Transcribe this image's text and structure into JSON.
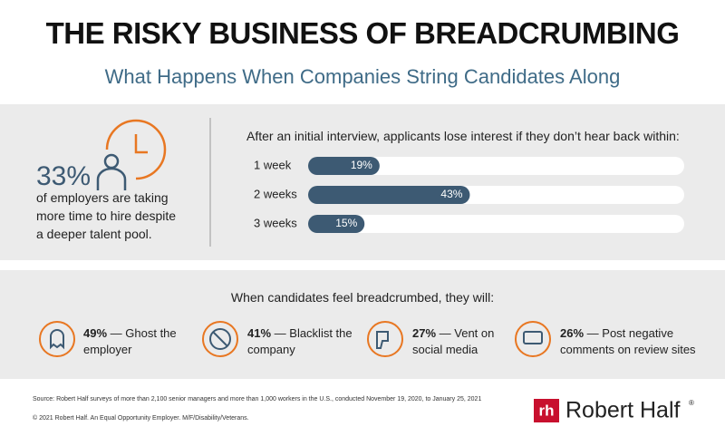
{
  "header": {
    "title": "THE RISKY BUSINESS OF BREADCRUMBING",
    "subtitle": "What Happens When Companies String Candidates Along"
  },
  "stat": {
    "value": 33,
    "value_label": "33%",
    "lines": [
      "of employers are taking",
      "more time to hire despite",
      "a deeper talent pool."
    ]
  },
  "chart_data": {
    "type": "bar",
    "orientation": "horizontal",
    "title": "After an initial interview, applicants lose interest if they don’t hear back within:",
    "categories": [
      "1 week",
      "2 weeks",
      "3 weeks"
    ],
    "values": [
      19,
      43,
      15
    ],
    "value_labels": [
      "19%",
      "43%",
      "15%"
    ],
    "color": "#3d5a73",
    "track_color": "#ffffff",
    "xlim": [
      0,
      100
    ]
  },
  "reactions": {
    "title": "When candidates feel breadcrumbed, they will:",
    "items": [
      {
        "value": 49,
        "value_label": "49%",
        "text": "— Ghost the employer"
      },
      {
        "value": 41,
        "value_label": "41%",
        "text": "— Blacklist the company"
      },
      {
        "value": 27,
        "value_label": "27%",
        "text": "— Vent on social media"
      },
      {
        "value": 26,
        "value_label": "26%",
        "text": "— Post negative comments on review sites"
      }
    ]
  },
  "footer": {
    "source": "Source: Robert Half surveys of more than 2,100 senior managers and more than 1,000 workers in the U.S., conducted November 19, 2020, to January 25, 2021",
    "copyright": "© 2021 Robert Half. An Equal Opportunity Employer. M/F/Disability/Veterans.",
    "logo_mark": "rh",
    "logo_text": "Robert Half",
    "logo_symbol": "®"
  }
}
